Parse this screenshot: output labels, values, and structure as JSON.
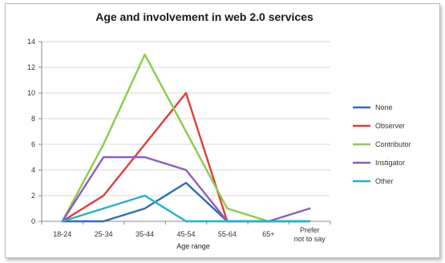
{
  "chart_data": {
    "type": "line",
    "title": "Age and involvement in web 2.0 services",
    "xlabel": "Age range",
    "ylabel": "",
    "categories": [
      "18-24",
      "25-34",
      "35-44",
      "45-54",
      "55-64",
      "65+",
      "Prefer not to say"
    ],
    "ylim": [
      0,
      14
    ],
    "yticks": [
      0,
      2,
      4,
      6,
      8,
      10,
      12,
      14
    ],
    "grid": true,
    "legend_position": "right",
    "series": [
      {
        "name": "None",
        "color": "#2e6db4",
        "values": [
          0,
          0,
          1,
          3,
          0,
          0,
          0
        ]
      },
      {
        "name": "Observer",
        "color": "#e23b3b",
        "values": [
          0,
          2,
          6,
          10,
          0,
          null,
          null
        ]
      },
      {
        "name": "Contributor",
        "color": "#8ccc4a",
        "values": [
          0,
          6,
          13,
          7,
          1,
          0,
          null
        ]
      },
      {
        "name": "Instigator",
        "color": "#8a5cc2",
        "values": [
          0,
          5,
          5,
          4,
          0,
          0,
          1
        ]
      },
      {
        "name": "Other",
        "color": "#1fb4c8",
        "values": [
          0,
          1,
          2,
          0,
          0,
          0,
          0
        ]
      }
    ]
  }
}
